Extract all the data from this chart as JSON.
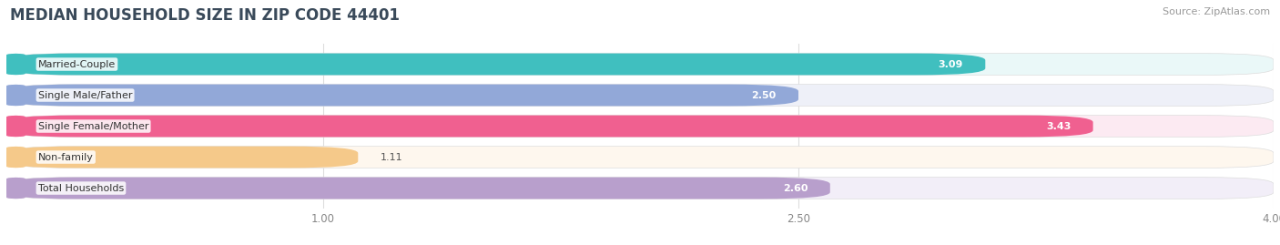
{
  "title": "MEDIAN HOUSEHOLD SIZE IN ZIP CODE 44401",
  "source": "Source: ZipAtlas.com",
  "categories": [
    "Married-Couple",
    "Single Male/Father",
    "Single Female/Mother",
    "Non-family",
    "Total Households"
  ],
  "values": [
    3.09,
    2.5,
    3.43,
    1.11,
    2.6
  ],
  "bar_colors": [
    "#40bfbf",
    "#92a8d8",
    "#f06090",
    "#f5c98a",
    "#b89fcc"
  ],
  "bar_bg_colors": [
    "#eaf8f8",
    "#eef0f8",
    "#fceaf2",
    "#fef7ee",
    "#f2eef8"
  ],
  "tab_colors": [
    "#40bfbf",
    "#92a8d8",
    "#f06090",
    "#f5c98a",
    "#b89fcc"
  ],
  "xlim": [
    0,
    4.0
  ],
  "xmin": 0,
  "xmax": 4.0,
  "xticks": [
    1.0,
    2.5,
    4.0
  ],
  "title_fontsize": 13,
  "label_fontsize": 8,
  "value_fontsize": 8,
  "background_color": "#ffffff"
}
